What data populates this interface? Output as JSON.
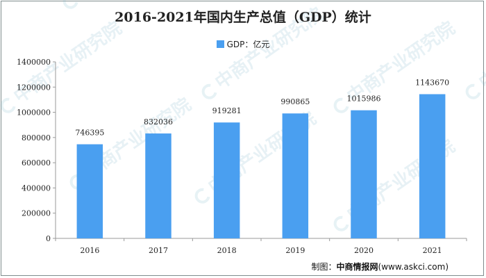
{
  "footer": {
    "label": "制图：",
    "source": "中商情报网",
    "url": "(www.askci.com)"
  },
  "watermark_text": "中商产业研究院",
  "colors": {
    "bar": "#4a9ff0",
    "axis": "#9a9a9a"
  },
  "chart_data": {
    "type": "bar",
    "title": "2016-2021年国内生产总值（GDP）统计",
    "xlabel": "",
    "ylabel": "",
    "categories": [
      "2016",
      "2017",
      "2018",
      "2019",
      "2020",
      "2021"
    ],
    "series": [
      {
        "name": "GDP：亿元",
        "values": [
          746395,
          832036,
          919281,
          990865,
          1015986,
          1143670
        ]
      }
    ],
    "ylim": [
      0,
      1400000
    ],
    "yticks": [
      0,
      200000,
      400000,
      600000,
      800000,
      1000000,
      1200000,
      1400000
    ],
    "grid": false,
    "legend": "top-center",
    "data_labels": true
  }
}
